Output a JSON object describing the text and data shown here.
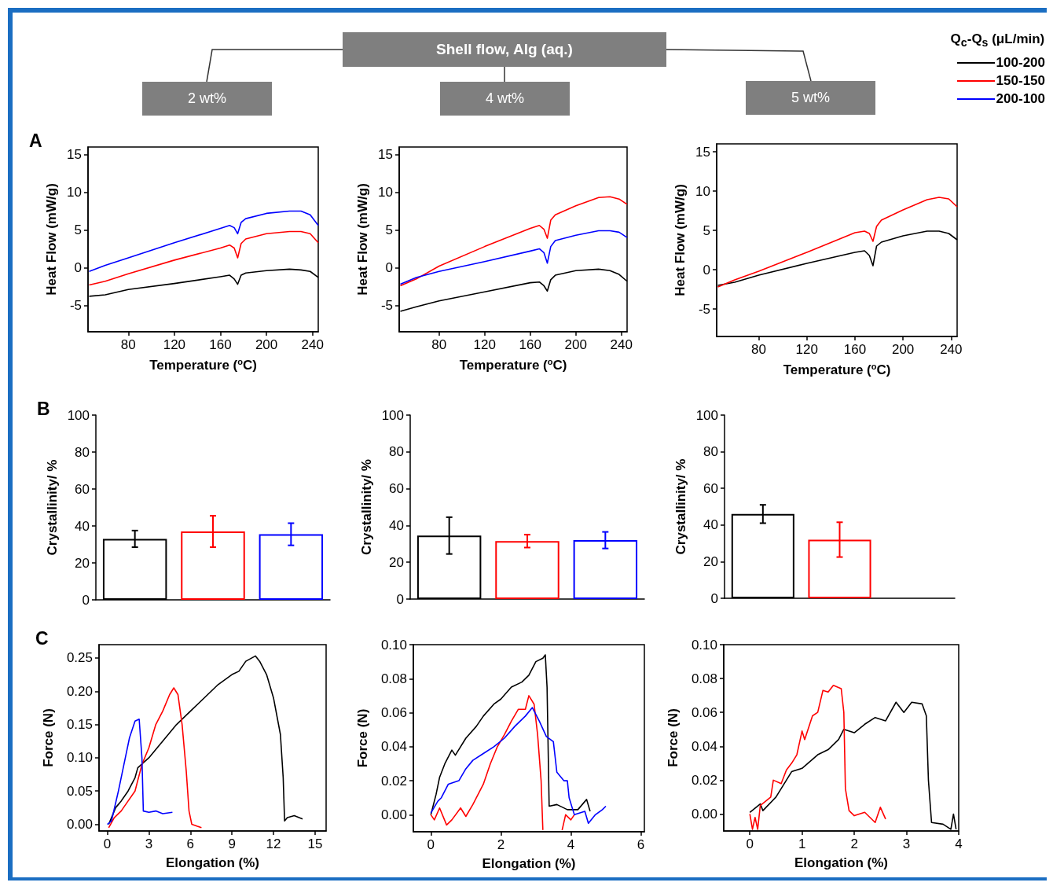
{
  "chart_data": [
    {
      "type": "other",
      "title": "Shell flow, Alg (aq.)",
      "annotations": [
        "2 wt%",
        "4 wt%",
        "5 wt%"
      ],
      "legend": "top right",
      "legend_title": "Q$_{c}$-Q$_{s}$ (μL/min)",
      "series": [
        {
          "name": "100-200",
          "color": "#000000"
        },
        {
          "name": "150-150",
          "color": "#ff0000"
        },
        {
          "name": "200-100",
          "color": "#0000ff"
        }
      ]
    },
    {
      "type": "line",
      "annotations": [
        "A"
      ],
      "xlabel": "Temperature ($^{o}$C)",
      "ylabel": "Heat Flow (mW/g)",
      "xlim": [
        45,
        245
      ],
      "ylim": [
        -8.5,
        16
      ],
      "xticks": [
        80,
        120,
        160,
        200,
        240
      ],
      "yticks": [
        -5,
        0,
        5,
        10,
        15
      ],
      "x": [
        46,
        60,
        80,
        120,
        160,
        168,
        172,
        175,
        178,
        182,
        200,
        220,
        230,
        238,
        245
      ],
      "series": [
        {
          "color": "#000000",
          "values": [
            -3.8,
            -3.6,
            -2.9,
            -2.1,
            -1.2,
            -1.0,
            -1.5,
            -2.2,
            -1.0,
            -0.7,
            -0.4,
            -0.2,
            -0.3,
            -0.5,
            -1.3
          ]
        },
        {
          "color": "#ff0000",
          "values": [
            -2.3,
            -1.8,
            -0.8,
            1.0,
            2.6,
            3.0,
            2.6,
            1.3,
            3.2,
            3.8,
            4.5,
            4.8,
            4.8,
            4.5,
            3.3
          ]
        },
        {
          "color": "#0000ff",
          "values": [
            -0.5,
            0.3,
            1.3,
            3.3,
            5.2,
            5.6,
            5.3,
            4.5,
            6.0,
            6.5,
            7.2,
            7.5,
            7.5,
            7.0,
            5.6
          ]
        }
      ]
    },
    {
      "type": "line",
      "xlabel": "Temperature ($^{o}$C)",
      "ylabel": "Heat Flow (mW/g)",
      "xlim": [
        45,
        245
      ],
      "ylim": [
        -8.5,
        16
      ],
      "xticks": [
        80,
        120,
        160,
        200,
        240
      ],
      "yticks": [
        -5,
        0,
        5,
        10,
        15
      ],
      "x": [
        46,
        60,
        80,
        120,
        160,
        168,
        172,
        175,
        178,
        182,
        200,
        220,
        230,
        238,
        245
      ],
      "series": [
        {
          "color": "#000000",
          "values": [
            -5.8,
            -5.2,
            -4.4,
            -3.2,
            -2.0,
            -1.9,
            -2.4,
            -3.1,
            -1.6,
            -1.0,
            -0.4,
            -0.2,
            -0.4,
            -0.9,
            -1.8
          ]
        },
        {
          "color": "#ff0000",
          "values": [
            -2.4,
            -1.5,
            0.2,
            2.8,
            5.2,
            5.6,
            5.1,
            3.9,
            6.3,
            7.0,
            8.2,
            9.3,
            9.4,
            9.1,
            8.4
          ]
        },
        {
          "color": "#0000ff",
          "values": [
            -2.2,
            -1.3,
            -0.5,
            0.8,
            2.2,
            2.5,
            2.0,
            0.6,
            2.8,
            3.6,
            4.3,
            4.9,
            4.9,
            4.7,
            4.0
          ]
        }
      ]
    },
    {
      "type": "line",
      "xlabel": "Temperature ($^{o}$C)",
      "ylabel": "Heat Flow (mW/g)",
      "xlim": [
        45,
        245
      ],
      "ylim": [
        -8.5,
        16
      ],
      "xticks": [
        80,
        120,
        160,
        200,
        240
      ],
      "yticks": [
        -5,
        0,
        5,
        10,
        15
      ],
      "x": [
        46,
        60,
        80,
        120,
        160,
        168,
        172,
        175,
        178,
        182,
        200,
        220,
        230,
        238,
        245
      ],
      "series": [
        {
          "color": "#000000",
          "values": [
            -2.0,
            -1.6,
            -0.7,
            0.8,
            2.2,
            2.4,
            1.8,
            0.5,
            3.0,
            3.5,
            4.3,
            4.9,
            4.9,
            4.6,
            3.8
          ]
        },
        {
          "color": "#ff0000",
          "values": [
            -2.2,
            -1.3,
            -0.2,
            2.2,
            4.7,
            4.9,
            4.6,
            3.6,
            5.5,
            6.3,
            7.6,
            8.9,
            9.2,
            9.0,
            8.0
          ]
        }
      ]
    },
    {
      "type": "bar",
      "annotations": [
        "B"
      ],
      "ylabel": "Crystallinity/ %",
      "categories": [
        null,
        null,
        null
      ],
      "values": [
        33,
        37,
        35.5
      ],
      "errors": [
        4.5,
        8.5,
        6
      ],
      "colors": [
        "#000000",
        "#ff0000",
        "#0000ff"
      ],
      "ylim": [
        0,
        100
      ],
      "yticks": [
        0,
        20,
        40,
        60,
        80,
        100
      ]
    },
    {
      "type": "bar",
      "ylabel": "Crystallinity/ %",
      "categories": [
        null,
        null,
        null
      ],
      "values": [
        34.5,
        31.5,
        32
      ],
      "errors": [
        10,
        3.5,
        4.5
      ],
      "colors": [
        "#000000",
        "#ff0000",
        "#0000ff"
      ],
      "ylim": [
        0,
        100
      ],
      "yticks": [
        0,
        20,
        40,
        60,
        80,
        100
      ]
    },
    {
      "type": "bar",
      "ylabel": "Crystallinity/ %",
      "categories": [
        null,
        null,
        null
      ],
      "values": [
        46,
        32,
        null
      ],
      "errors": [
        5,
        9.5,
        null
      ],
      "colors": [
        "#000000",
        "#ff0000",
        "#0000ff"
      ],
      "ylim": [
        0,
        100
      ],
      "yticks": [
        0,
        20,
        40,
        60,
        80,
        100
      ]
    },
    {
      "type": "line",
      "annotations": [
        "C"
      ],
      "xlabel": "Elongation (%)",
      "ylabel": "Force (N)",
      "xlim": [
        -0.6,
        15.8
      ],
      "ylim": [
        -0.01,
        0.27
      ],
      "xticks": [
        0,
        3,
        6,
        9,
        12,
        15
      ],
      "yticks": [
        {
          "value": 0,
          "label": "0.00"
        },
        {
          "value": 0.05,
          "label": "0.05"
        },
        {
          "value": 0.1,
          "label": "0.10"
        },
        {
          "value": 0.15,
          "label": "0.15"
        },
        {
          "value": 0.2,
          "label": "0.20"
        },
        {
          "value": 0.25,
          "label": "0.25"
        }
      ],
      "series": [
        {
          "color": "#000000",
          "x": [
            0.1,
            0.3,
            0.6,
            1,
            1.5,
            2,
            2.2,
            3,
            4,
            5,
            6,
            7,
            8,
            9,
            9.5,
            10,
            10.7,
            11,
            11.5,
            12,
            12.5,
            12.7,
            12.8,
            13,
            13.5,
            14.1
          ],
          "values": [
            0.0,
            0.01,
            0.025,
            0.035,
            0.05,
            0.07,
            0.085,
            0.1,
            0.125,
            0.15,
            0.17,
            0.19,
            0.21,
            0.225,
            0.23,
            0.245,
            0.253,
            0.245,
            0.225,
            0.19,
            0.135,
            0.07,
            0.005,
            0.01,
            0.013,
            0.008
          ]
        },
        {
          "color": "#ff0000",
          "x": [
            0.1,
            0.5,
            1,
            1.5,
            2,
            2.5,
            3,
            3.5,
            4,
            4.5,
            4.8,
            5.1,
            5.4,
            5.7,
            5.9,
            6.1,
            6.5,
            6.8
          ],
          "values": [
            -0.005,
            0.01,
            0.02,
            0.035,
            0.05,
            0.09,
            0.115,
            0.15,
            0.17,
            0.195,
            0.205,
            0.195,
            0.15,
            0.08,
            0.02,
            0.0,
            -0.003,
            -0.005
          ]
        },
        {
          "color": "#0000ff",
          "x": [
            0,
            0.3,
            0.8,
            1.2,
            1.6,
            2,
            2.3,
            2.5,
            2.6,
            3,
            3.5,
            4,
            4.7
          ],
          "values": [
            0.0,
            0.005,
            0.05,
            0.09,
            0.13,
            0.155,
            0.158,
            0.1,
            0.02,
            0.018,
            0.02,
            0.016,
            0.018
          ]
        }
      ]
    },
    {
      "type": "line",
      "xlabel": "Elongation (%)",
      "ylabel": "Force (N)",
      "xlim": [
        -0.5,
        6.1
      ],
      "ylim": [
        -0.01,
        0.1
      ],
      "xticks": [
        0,
        2,
        4,
        6
      ],
      "yticks": [
        {
          "value": 0,
          "label": "0.00"
        },
        {
          "value": 0.02,
          "label": "0.02"
        },
        {
          "value": 0.04,
          "label": "0.04"
        },
        {
          "value": 0.06,
          "label": "0.06"
        },
        {
          "value": 0.08,
          "label": "0.08"
        },
        {
          "value": 0.1,
          "label": "0.10"
        }
      ],
      "series": [
        {
          "color": "#000000",
          "x": [
            0,
            0.15,
            0.25,
            0.4,
            0.6,
            0.7,
            1,
            1.3,
            1.5,
            1.8,
            2,
            2.3,
            2.6,
            2.8,
            3,
            3.2,
            3.27,
            3.32,
            3.38,
            3.6,
            3.9,
            4.2,
            4.45,
            4.55
          ],
          "values": [
            0.0,
            0.012,
            0.022,
            0.03,
            0.038,
            0.035,
            0.045,
            0.052,
            0.058,
            0.065,
            0.068,
            0.075,
            0.078,
            0.082,
            0.09,
            0.092,
            0.094,
            0.075,
            0.005,
            0.006,
            0.003,
            0.003,
            0.009,
            0.002
          ]
        },
        {
          "color": "#ff0000",
          "x": [
            0,
            0.1,
            0.25,
            0.45,
            0.6,
            0.85,
            1,
            1.2,
            1.5,
            1.7,
            1.9,
            2.1,
            2.3,
            2.5,
            2.7,
            2.8,
            2.95,
            3.05,
            3.15,
            3.2,
            3.5,
            3.75,
            3.85,
            4.0,
            4.1
          ],
          "values": [
            0.0,
            -0.003,
            0.004,
            -0.006,
            -0.003,
            0.004,
            -0.001,
            0.006,
            0.018,
            0.03,
            0.04,
            0.047,
            0.055,
            0.062,
            0.062,
            0.07,
            0.065,
            0.047,
            0.02,
            -0.009,
            null,
            -0.009,
            0.0,
            -0.003,
            0.0
          ]
        },
        {
          "color": "#0000ff",
          "x": [
            0,
            0.2,
            0.3,
            0.5,
            0.8,
            1,
            1.2,
            1.5,
            1.8,
            2.1,
            2.4,
            2.7,
            2.9,
            3.1,
            3.3,
            3.5,
            3.6,
            3.8,
            3.9,
            3.95,
            4.1,
            4.4,
            4.5,
            4.7,
            4.9,
            5.0
          ],
          "values": [
            0.001,
            0.008,
            0.01,
            0.018,
            0.02,
            0.027,
            0.032,
            0.036,
            0.04,
            0.045,
            0.052,
            0.058,
            0.063,
            0.055,
            0.046,
            0.043,
            0.025,
            0.02,
            0.02,
            0.01,
            0.0,
            0.002,
            -0.005,
            0.0,
            0.003,
            0.005
          ]
        }
      ]
    },
    {
      "type": "line",
      "xlabel": "Elongation (%)",
      "ylabel": "Force (N)",
      "xlim": [
        -0.5,
        4
      ],
      "ylim": [
        -0.01,
        0.1
      ],
      "xticks": [
        0,
        1,
        2,
        3,
        4
      ],
      "yticks": [
        {
          "value": 0,
          "label": "0.00"
        },
        {
          "value": 0.02,
          "label": "0.02"
        },
        {
          "value": 0.04,
          "label": "0.04"
        },
        {
          "value": 0.06,
          "label": "0.06"
        },
        {
          "value": 0.08,
          "label": "0.08"
        },
        {
          "value": 0.1,
          "label": "0.10"
        }
      ],
      "series": [
        {
          "color": "#000000",
          "x": [
            0,
            0.2,
            0.25,
            0.5,
            0.8,
            1,
            1.3,
            1.5,
            1.7,
            1.8,
            2,
            2.2,
            2.4,
            2.6,
            2.8,
            2.95,
            3.1,
            3.3,
            3.38,
            3.42,
            3.48,
            3.7,
            3.85,
            3.9,
            3.95
          ],
          "values": [
            0.001,
            0.006,
            0.002,
            0.01,
            0.025,
            0.027,
            0.035,
            0.038,
            0.044,
            0.05,
            0.048,
            0.053,
            0.057,
            0.055,
            0.066,
            0.06,
            0.066,
            0.065,
            0.058,
            0.02,
            -0.005,
            -0.006,
            -0.009,
            0.0,
            -0.009
          ]
        },
        {
          "color": "#ff0000",
          "x": [
            0,
            0.05,
            0.1,
            0.15,
            0.2,
            0.4,
            0.45,
            0.6,
            0.7,
            0.8,
            0.9,
            1.0,
            1.05,
            1.2,
            1.3,
            1.4,
            1.5,
            1.6,
            1.75,
            1.8,
            1.83,
            1.9,
            2.0,
            2.2,
            2.4,
            2.5,
            2.6
          ],
          "values": [
            0.0,
            -0.009,
            -0.002,
            -0.009,
            0.005,
            0.01,
            0.02,
            0.018,
            0.026,
            0.03,
            0.035,
            0.049,
            0.044,
            0.058,
            0.06,
            0.073,
            0.072,
            0.076,
            0.074,
            0.06,
            0.015,
            0.002,
            -0.001,
            0.001,
            -0.005,
            0.004,
            -0.003
          ]
        }
      ]
    }
  ]
}
